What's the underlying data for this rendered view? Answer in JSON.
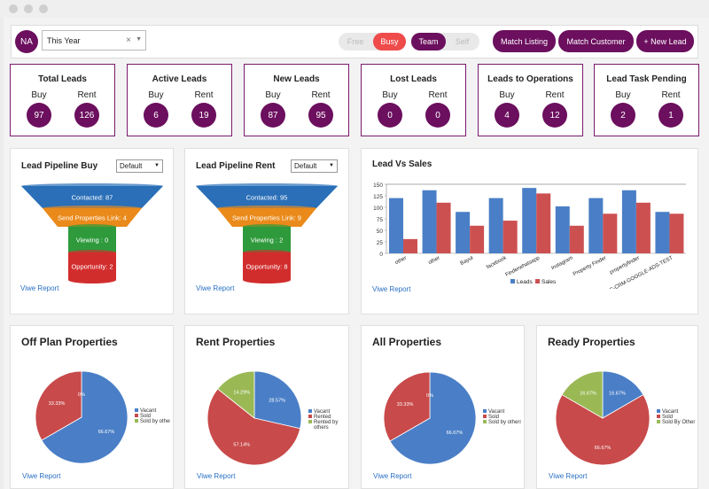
{
  "app": {
    "avatar_initials": "NA"
  },
  "filter": {
    "period": "This Year",
    "clear_icon": "close-icon",
    "dropdown_icon": "chevron-down-icon"
  },
  "availability": {
    "free": "Free",
    "busy": "Busy",
    "team": "Team",
    "self": "Self",
    "active": [
      "Busy",
      "Team"
    ]
  },
  "actions": {
    "match_listing": "Match Listing",
    "match_customer": "Match Customer",
    "new_lead": "+ New Lead"
  },
  "colors": {
    "brand": "#6b0f5e",
    "busy": "#ef4b4b",
    "link": "#2a6fc4"
  },
  "stats": [
    {
      "title": "Total Leads",
      "left_label": "Buy",
      "left_value": "97",
      "right_label": "Rent",
      "right_value": "126"
    },
    {
      "title": "Active Leads",
      "left_label": "Buy",
      "left_value": "6",
      "right_label": "Rent",
      "right_value": "19"
    },
    {
      "title": "New Leads",
      "left_label": "Buy",
      "left_value": "87",
      "right_label": "Rent",
      "right_value": "95"
    },
    {
      "title": "Lost Leads",
      "left_label": "Buy",
      "left_value": "0",
      "right_label": "Rent",
      "right_value": "0"
    },
    {
      "title": "Leads to Operations",
      "left_label": "Buy",
      "left_value": "4",
      "right_label": "Rent",
      "right_value": "12"
    },
    {
      "title": "Lead Task Pending",
      "left_label": "Buy",
      "left_value": "2",
      "right_label": "Rent",
      "right_value": "1"
    }
  ],
  "pipeline_buy": {
    "title": "Lead Pipeline Buy",
    "select": "Default",
    "link": "Viwe Report",
    "stages": [
      "Contacted: 87",
      "Send Properties Link: 4",
      "Viewing : 0",
      "Opportunity: 2"
    ]
  },
  "pipeline_rent": {
    "title": "Lead Pipeline Rent",
    "select": "Default",
    "link": "Viwe Report",
    "stages": [
      "Contacted: 95",
      "Send Properties Link: 9",
      "Viewing : 2",
      "Opportunity: 8"
    ]
  },
  "lead_vs_sales": {
    "title": "Lead Vs Sales",
    "link": "Viwe Report"
  },
  "chart_data": [
    {
      "type": "bar",
      "title": "Lead Vs Sales",
      "categories": [
        "other",
        "other",
        "Bayut",
        "facebook",
        "Finderwhatsapp",
        "Instagram",
        "Property Finder",
        "propertyfinder",
        "UAE-CRM-GOOGLE-ADS-TEST"
      ],
      "series": [
        {
          "name": "Leads",
          "color": "#4a7fc7",
          "values": [
            120,
            137,
            90,
            120,
            142,
            102,
            120,
            137,
            90
          ]
        },
        {
          "name": "Sales",
          "color": "#cd5050",
          "values": [
            31,
            110,
            60,
            71,
            130,
            60,
            86,
            110,
            86
          ]
        }
      ],
      "ylim": [
        0,
        150
      ],
      "yticks": [
        0,
        25,
        50,
        75,
        100,
        125,
        150
      ],
      "legend": "bottom",
      "grid": false
    },
    {
      "type": "pie",
      "title": "Off Plan Properties",
      "labels": [
        "Vacant",
        "Sold",
        "Sold by others"
      ],
      "values": [
        66.67,
        33.33,
        0
      ],
      "value_labels": [
        "66.67%",
        "33.33%",
        "0%"
      ],
      "colors": [
        "#4a7fc7",
        "#c84a4a",
        "#9ab955"
      ],
      "legend": "right"
    },
    {
      "type": "pie",
      "title": "Rent Properties",
      "labels": [
        "Vacant",
        "Rented",
        "Rented by others"
      ],
      "values": [
        28.57,
        57.14,
        14.29
      ],
      "value_labels": [
        "28.57%",
        "57.14%",
        "14.29%"
      ],
      "colors": [
        "#4a7fc7",
        "#c84a4a",
        "#9ab955"
      ],
      "legend": "right"
    },
    {
      "type": "pie",
      "title": "All Properties",
      "labels": [
        "Vacant",
        "Sold",
        "Sold by others"
      ],
      "values": [
        66.67,
        33.33,
        0
      ],
      "value_labels": [
        "66.67%",
        "33.33%",
        "0%"
      ],
      "colors": [
        "#4a7fc7",
        "#c84a4a",
        "#9ab955"
      ],
      "legend": "right"
    },
    {
      "type": "pie",
      "title": "Ready Properties",
      "labels": [
        "Vacant",
        "Sold",
        "Sold By Other"
      ],
      "values": [
        16.67,
        66.67,
        16.67
      ],
      "value_labels": [
        "16.67%",
        "66.67%",
        "16.67%"
      ],
      "colors": [
        "#4a7fc7",
        "#c84a4a",
        "#9ab955"
      ],
      "legend": "right"
    }
  ],
  "pie_panels": [
    {
      "title": "Off Plan Properties",
      "link": "Viwe Report"
    },
    {
      "title": "Rent Properties",
      "link": "Viwe Report"
    },
    {
      "title": "All Properties",
      "link": "Viwe Report"
    },
    {
      "title": "Ready Properties",
      "link": "Viwe Report"
    }
  ]
}
